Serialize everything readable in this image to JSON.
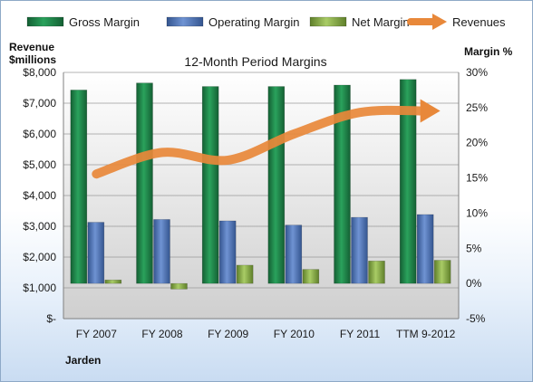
{
  "chart_data": {
    "type": "bar",
    "title": "12-Month Period Margins",
    "company": "Jarden",
    "categories": [
      "FY 2007",
      "FY 2008",
      "FY 2009",
      "FY 2010",
      "FY 2011",
      "TTM 9-2012"
    ],
    "left_axis": {
      "label_line1": "Revenue",
      "label_line2": "$millions",
      "ylim": [
        0,
        8000
      ],
      "ticks": [
        0,
        1000,
        2000,
        3000,
        4000,
        5000,
        6000,
        7000,
        8000
      ],
      "tick_labels": [
        "$-",
        "$1,000",
        "$2,000",
        "$3,000",
        "$4,000",
        "$5,000",
        "$6,000",
        "$7,000",
        "$8,000"
      ]
    },
    "right_axis": {
      "label": "Margin %",
      "ylim": [
        -5,
        30
      ],
      "ticks": [
        -5,
        0,
        5,
        10,
        15,
        20,
        25,
        30
      ],
      "tick_labels": [
        "-5%",
        "0%",
        "5%",
        "10%",
        "15%",
        "20%",
        "25%",
        "30%"
      ]
    },
    "series": [
      {
        "name": "Gross Margin",
        "axis": "right",
        "kind": "bar",
        "color": "#1f8a4c",
        "values": [
          27.5,
          28.5,
          28.0,
          28.0,
          28.2,
          29.0
        ]
      },
      {
        "name": "Operating Margin",
        "axis": "right",
        "kind": "bar",
        "color": "#4f74b8",
        "values": [
          8.7,
          9.1,
          8.9,
          8.3,
          9.4,
          9.8
        ]
      },
      {
        "name": "Net Margin",
        "axis": "right",
        "kind": "bar",
        "color": "#8bb04a",
        "values": [
          0.5,
          -0.8,
          2.6,
          2.0,
          3.2,
          3.3
        ]
      },
      {
        "name": "Revenues",
        "axis": "left",
        "kind": "line",
        "color": "#e8883a",
        "values": [
          4700,
          5400,
          5150,
          6000,
          6700,
          6750
        ]
      }
    ],
    "grid": true,
    "legend_position": "top"
  }
}
